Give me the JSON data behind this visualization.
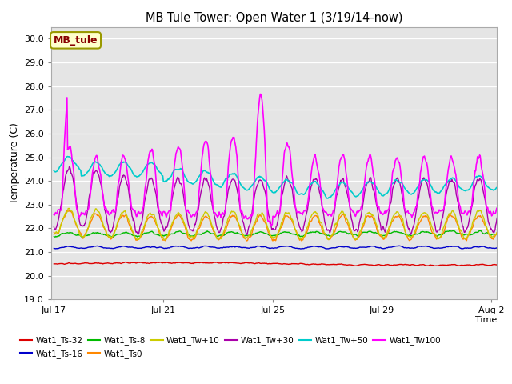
{
  "title": "MB Tule Tower: Open Water 1 (3/19/14-now)",
  "xlabel": "Time",
  "ylabel": "Temperature (C)",
  "ylim": [
    19.0,
    30.5
  ],
  "yticks": [
    19.0,
    20.0,
    21.0,
    22.0,
    23.0,
    24.0,
    25.0,
    26.0,
    27.0,
    28.0,
    29.0,
    30.0
  ],
  "background_color": "#ffffff",
  "plot_bg_color": "#e5e5e5",
  "series": {
    "Wat1_Ts-32": {
      "color": "#dd0000",
      "lw": 1.0
    },
    "Wat1_Ts-16": {
      "color": "#0000cc",
      "lw": 1.0
    },
    "Wat1_Ts-8": {
      "color": "#00bb00",
      "lw": 1.0
    },
    "Wat1_Ts0": {
      "color": "#ff8800",
      "lw": 1.0
    },
    "Wat1_Tw+10": {
      "color": "#cccc00",
      "lw": 1.0
    },
    "Wat1_Tw+30": {
      "color": "#aa00aa",
      "lw": 1.0
    },
    "Wat1_Tw+50": {
      "color": "#00cccc",
      "lw": 1.2
    },
    "Wat1_Tw100": {
      "color": "#ff00ff",
      "lw": 1.2
    }
  },
  "xtick_labels": [
    "Jul 17",
    "Jul 21",
    "Jul 25",
    "Jul 29",
    "Aug 2"
  ],
  "n_days": 18,
  "pts_per_day": 48,
  "inset_label": "MB_tule",
  "inset_bg": "#ffffcc",
  "inset_fg": "#880000",
  "legend_row1": [
    "Wat1_Ts-32",
    "Wat1_Ts-16",
    "Wat1_Ts-8",
    "Wat1_Ts0",
    "Wat1_Tw+10",
    "Wat1_Tw+30"
  ],
  "legend_row2": [
    "Wat1_Tw+50",
    "Wat1_Tw100"
  ]
}
